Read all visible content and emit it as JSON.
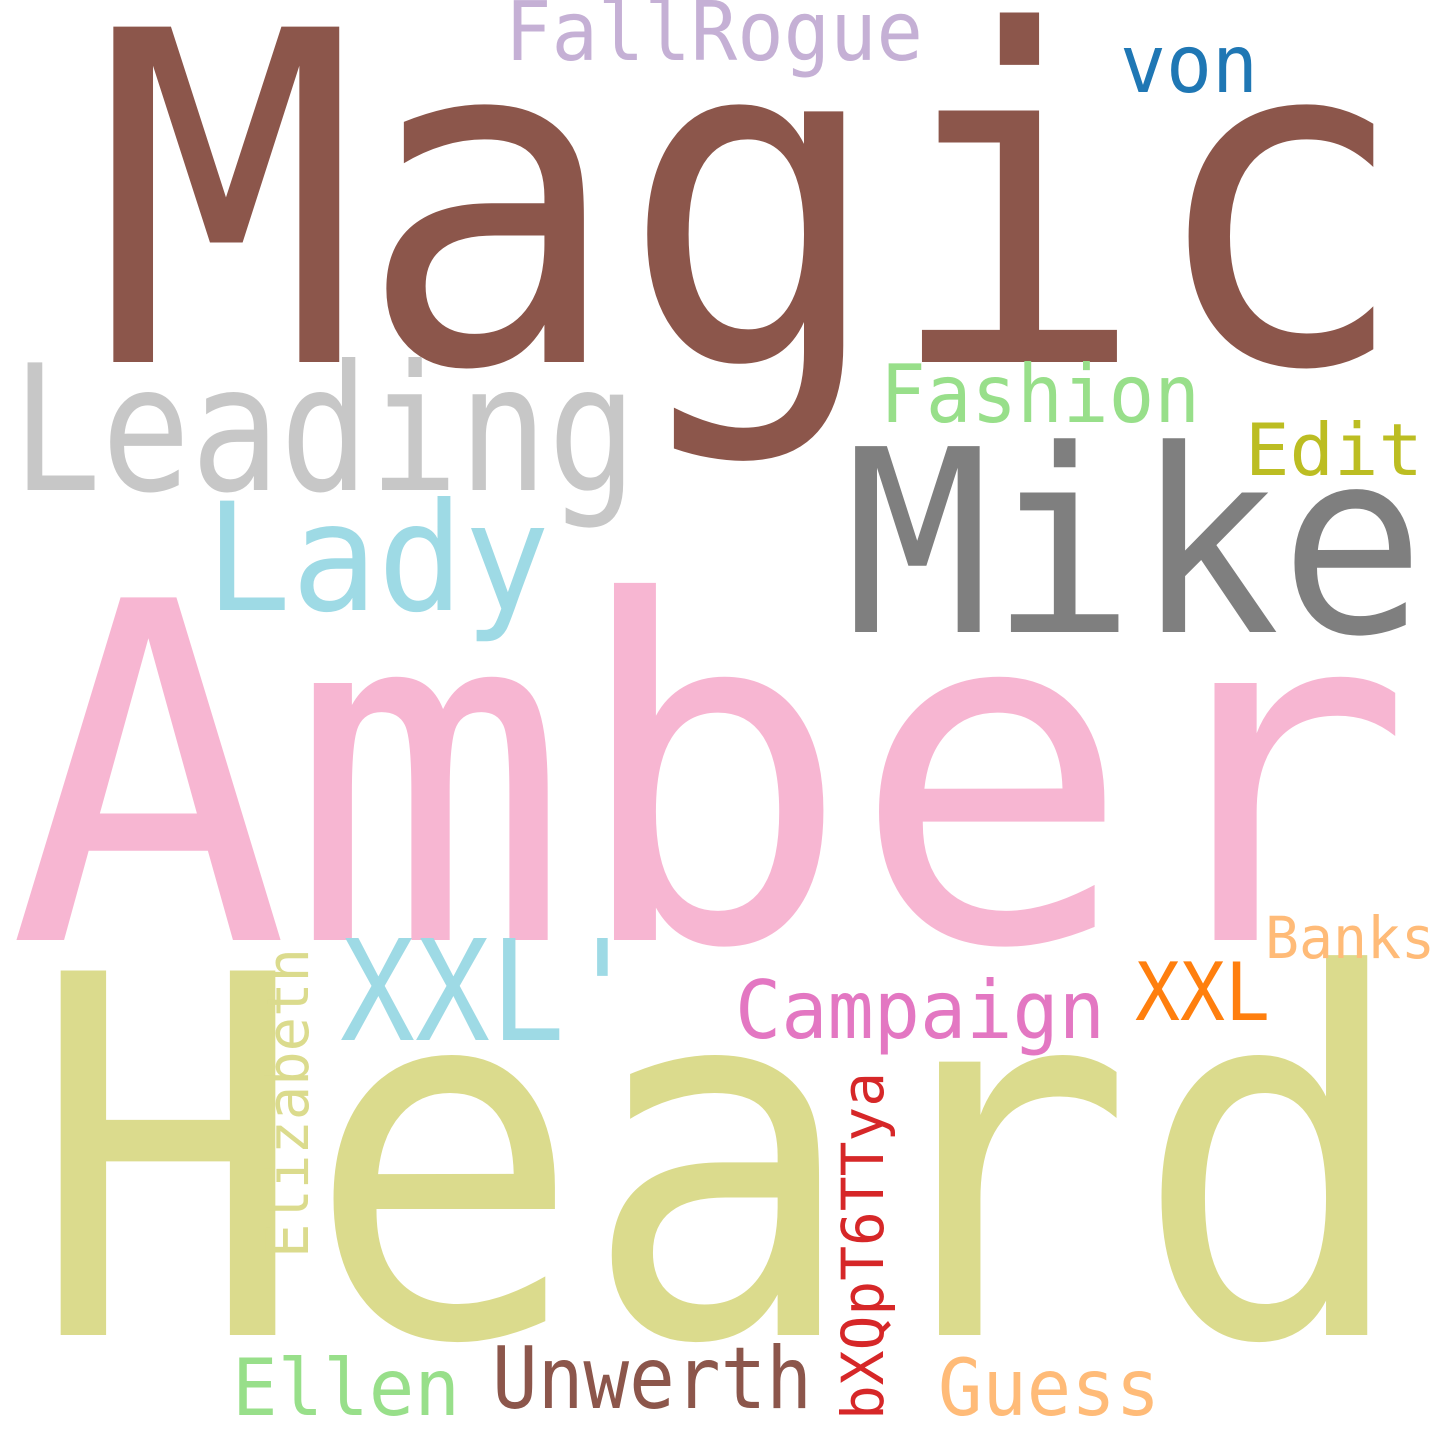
{
  "background": "#ffffff",
  "words": [
    {
      "text": "Magic",
      "color": "#8c564b",
      "vertical": false
    },
    {
      "text": "Amber",
      "color": "#f7b6d2",
      "vertical": false
    },
    {
      "text": "Heard",
      "color": "#dbdb8d",
      "vertical": false
    },
    {
      "text": "Mike",
      "color": "#7f7f7f",
      "vertical": false
    },
    {
      "text": "Leading",
      "color": "#c7c7c7",
      "vertical": false
    },
    {
      "text": "Lady",
      "color": "#9edae5",
      "vertical": false
    },
    {
      "text": "XXL'",
      "color": "#9edae5",
      "vertical": false
    },
    {
      "text": "FallRogue",
      "color": "#c5b0d5",
      "vertical": false
    },
    {
      "text": "von",
      "color": "#1f77b4",
      "vertical": false
    },
    {
      "text": "Fashion",
      "color": "#98df8a",
      "vertical": false
    },
    {
      "text": "Edit",
      "color": "#bcbd22",
      "vertical": false
    },
    {
      "text": "Banks",
      "color": "#ffbb78",
      "vertical": false
    },
    {
      "text": "XXL",
      "color": "#ff7f0e",
      "vertical": false
    },
    {
      "text": "Campaign",
      "color": "#e377c2",
      "vertical": false
    },
    {
      "text": "Elizabeth",
      "color": "#dbdb8d",
      "vertical": true
    },
    {
      "text": "bXQpT6TTya",
      "color": "#d62728",
      "vertical": true
    },
    {
      "text": "Ellen",
      "color": "#98df8a",
      "vertical": false
    },
    {
      "text": "Unwerth",
      "color": "#8c564b",
      "vertical": false
    },
    {
      "text": "Guess",
      "color": "#ffbb78",
      "vertical": false
    }
  ]
}
